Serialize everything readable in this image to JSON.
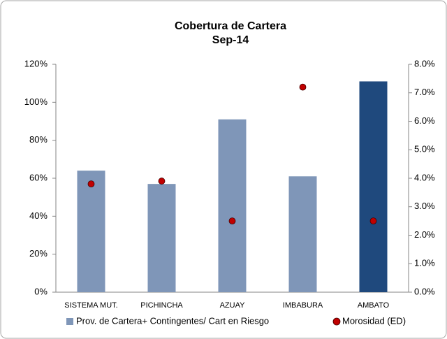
{
  "chart_data": {
    "type": "bar_dot",
    "title": "Cobertura de Cartera",
    "subtitle": "Sep-14",
    "categories": [
      "SISTEMA MUT.",
      "PICHINCHA",
      "AZUAY",
      "IMBABURA",
      "AMBATO"
    ],
    "series": [
      {
        "name": "Prov. de Cartera+ Contingentes/ Cart en Riesgo",
        "color": "#7f96b8",
        "colors": [
          "#7f96b8",
          "#7f96b8",
          "#7f96b8",
          "#7f96b8",
          "#1f497d"
        ],
        "values": [
          64,
          57,
          91,
          61,
          111
        ]
      },
      {
        "name": "Morosidad (ED)",
        "color": "#c00000",
        "axis": "y2",
        "values": [
          3.8,
          3.9,
          2.5,
          7.2,
          2.5
        ]
      }
    ],
    "ylim": [
      0,
      120
    ],
    "yticks": [
      {
        "value": 0,
        "label": "0%"
      },
      {
        "value": 20,
        "label": "20%"
      },
      {
        "value": 40,
        "label": "40%"
      },
      {
        "value": 60,
        "label": "60%"
      },
      {
        "value": 80,
        "label": "80%"
      },
      {
        "value": 100,
        "label": "100%"
      },
      {
        "value": 120,
        "label": "120%"
      }
    ],
    "y2lim": [
      0,
      8
    ],
    "y2ticks": [
      {
        "value": 0,
        "label": "0.0%"
      },
      {
        "value": 1,
        "label": "1.0%"
      },
      {
        "value": 2,
        "label": "2.0%"
      },
      {
        "value": 3,
        "label": "3.0%"
      },
      {
        "value": 4,
        "label": "4.0%"
      },
      {
        "value": 5,
        "label": "5.0%"
      },
      {
        "value": 6,
        "label": "6.0%"
      },
      {
        "value": 7,
        "label": "7.0%"
      },
      {
        "value": 8,
        "label": "8.0%"
      }
    ],
    "grid": false,
    "legend": "bottom"
  }
}
